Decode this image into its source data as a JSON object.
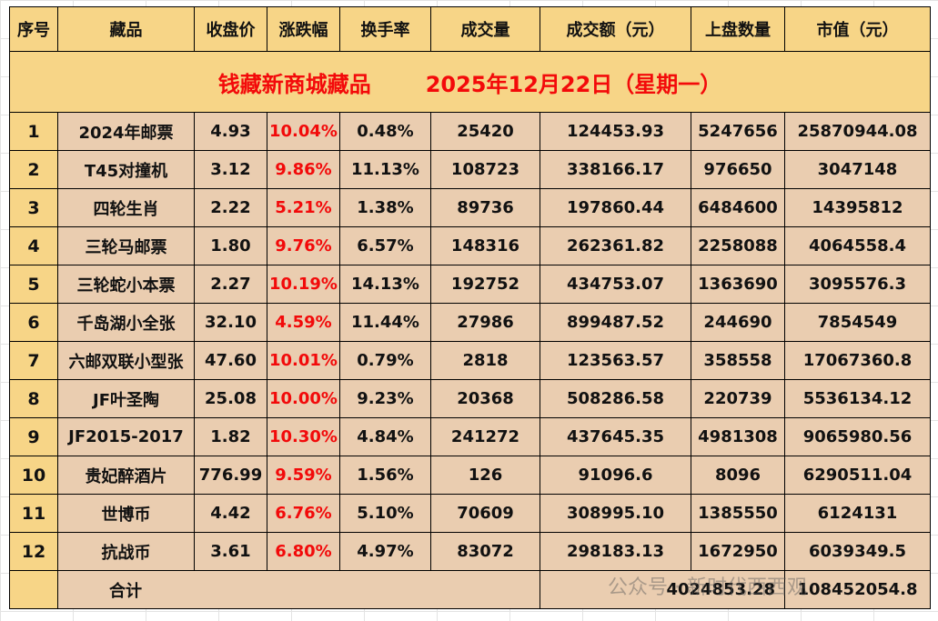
{
  "title": {
    "name": "钱藏新商城藏品",
    "date": "2025年12月22日（星期一）"
  },
  "headers": [
    "序号",
    "藏品",
    "收盘价",
    "涨跌幅",
    "换手率",
    "成交量",
    "成交额（元）",
    "上盘数量",
    "市值（元）"
  ],
  "rows": [
    [
      "1",
      "2024年邮票",
      "4.93",
      "10.04%",
      "0.48%",
      "25420",
      "124453.93",
      "5247656",
      "25870944.08"
    ],
    [
      "2",
      "T45对撞机",
      "3.12",
      "9.86%",
      "11.13%",
      "108723",
      "338166.17",
      "976650",
      "3047148"
    ],
    [
      "3",
      "四轮生肖",
      "2.22",
      "5.21%",
      "1.38%",
      "89736",
      "197860.44",
      "6484600",
      "14395812"
    ],
    [
      "4",
      "三轮马邮票",
      "1.80",
      "9.76%",
      "6.57%",
      "148316",
      "262361.82",
      "2258088",
      "4064558.4"
    ],
    [
      "5",
      "三轮蛇小本票",
      "2.27",
      "10.19%",
      "14.13%",
      "192752",
      "434753.07",
      "1363690",
      "3095576.3"
    ],
    [
      "6",
      "千岛湖小全张",
      "32.10",
      "4.59%",
      "11.44%",
      "27986",
      "899487.52",
      "244690",
      "7854549"
    ],
    [
      "7",
      "六邮双联小型张",
      "47.60",
      "10.01%",
      "0.79%",
      "2818",
      "123563.57",
      "358558",
      "17067360.8"
    ],
    [
      "8",
      "JF叶圣陶",
      "25.08",
      "10.00%",
      "9.23%",
      "20368",
      "508286.58",
      "220739",
      "5536134.12"
    ],
    [
      "9",
      "JF2015-2017",
      "1.82",
      "10.30%",
      "4.84%",
      "241272",
      "437645.35",
      "4981308",
      "9065980.56"
    ],
    [
      "10",
      "贵妃醉酒片",
      "776.99",
      "9.59%",
      "1.56%",
      "126",
      "91096.6",
      "8096",
      "6290511.04"
    ],
    [
      "11",
      "世博币",
      "4.42",
      "6.76%",
      "5.10%",
      "70609",
      "308995.10",
      "1385550",
      "6124131"
    ],
    [
      "12",
      "抗战币",
      "3.61",
      "6.80%",
      "4.97%",
      "83072",
      "298183.13",
      "1672950",
      "6039349.5"
    ]
  ],
  "total": {
    "label": "合计",
    "amount": "4024853.28",
    "market_value": "108452054.8"
  },
  "watermark": "公众号 · 新时代西西观",
  "colors": {
    "header_bg": "#F7D587",
    "cell_bg": "#EACDB0",
    "up_red": "#F20A0A"
  }
}
